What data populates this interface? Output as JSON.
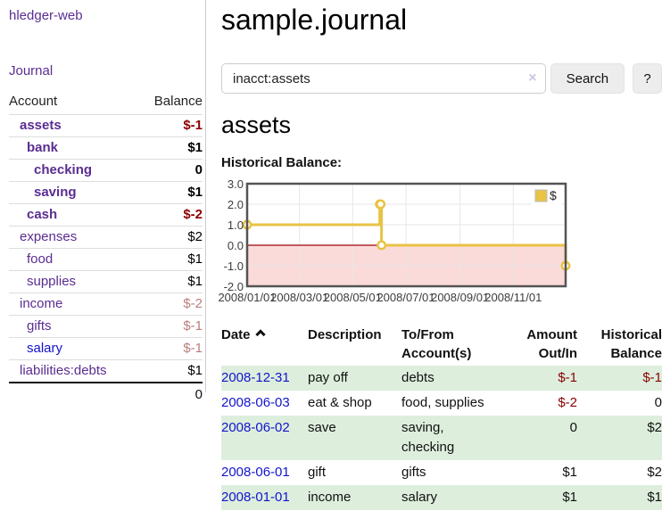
{
  "app": {
    "title": "hledger-web",
    "nav": {
      "journal": "Journal"
    }
  },
  "sidebar": {
    "accounts": {
      "headers": {
        "account": "Account",
        "balance": "Balance"
      },
      "rows": [
        {
          "label": "assets",
          "depth": 1,
          "bold": true,
          "link": "purple",
          "amount": "$-1",
          "amount_style": "neg"
        },
        {
          "label": "bank",
          "depth": 2,
          "bold": true,
          "link": "purple",
          "amount": "$1",
          "amount_style": "pos"
        },
        {
          "label": "checking",
          "depth": 3,
          "bold": true,
          "link": "purple",
          "amount": "0",
          "amount_style": "pos"
        },
        {
          "label": "saving",
          "depth": 3,
          "bold": true,
          "link": "purple",
          "amount": "$1",
          "amount_style": "pos"
        },
        {
          "label": "cash",
          "depth": 2,
          "bold": true,
          "link": "purple",
          "amount": "$-2",
          "amount_style": "neg"
        },
        {
          "label": "expenses",
          "depth": 1,
          "bold": false,
          "link": "purple",
          "amount": "$2",
          "amount_style": "pos"
        },
        {
          "label": "food",
          "depth": 2,
          "bold": false,
          "link": "purple",
          "amount": "$1",
          "amount_style": "pos"
        },
        {
          "label": "supplies",
          "depth": 2,
          "bold": false,
          "link": "purple",
          "amount": "$1",
          "amount_style": "pos"
        },
        {
          "label": "income",
          "depth": 1,
          "bold": false,
          "link": "purple",
          "amount": "$-2",
          "amount_style": "negmuted"
        },
        {
          "label": "gifts",
          "depth": 2,
          "bold": false,
          "link": "purple",
          "amount": "$-1",
          "amount_style": "negmuted"
        },
        {
          "label": "salary",
          "depth": 2,
          "bold": false,
          "link": "blue",
          "amount": "$-1",
          "amount_style": "negmuted"
        },
        {
          "label": "liabilities:debts",
          "depth": 1,
          "bold": false,
          "link": "purple",
          "amount": "$1",
          "amount_style": "pos"
        }
      ],
      "total": "0"
    }
  },
  "main": {
    "title": "sample.journal",
    "search": {
      "value": "inacct:assets",
      "clear_icon": "×",
      "search_button": "Search",
      "help_button": "?"
    },
    "account_heading": "assets",
    "chart_title": "Historical Balance:"
  },
  "chart_data": {
    "type": "line",
    "step": true,
    "title": "Historical Balance:",
    "xrange": [
      "2008-01-01",
      "2008-12-31"
    ],
    "ylim": [
      -2.0,
      3.0
    ],
    "yticks": [
      "3.0",
      "2.0",
      "1.0",
      "0.0",
      "-1.0",
      "-2.0"
    ],
    "xticks": [
      "2008/01/01",
      "2008/03/01",
      "2008/05/01",
      "2008/07/01",
      "2008/09/01",
      "2008/11/01"
    ],
    "series": [
      {
        "name": "$",
        "color": "#e8c345",
        "points": [
          [
            "2008-01-01",
            1
          ],
          [
            "2008-06-01",
            2
          ],
          [
            "2008-06-02",
            2
          ],
          [
            "2008-06-03",
            0
          ],
          [
            "2008-12-31",
            -1
          ]
        ]
      }
    ],
    "grid": true,
    "legend_position": "top-right",
    "negative_region_color": "#fbdada",
    "zero_line_color": "#9e0508",
    "border_color": "#545454",
    "gridline_color": "#e7e7e7"
  },
  "register": {
    "headers": {
      "date": "Date",
      "description": "Description",
      "accounts": "To/From Account(s)",
      "amount": "Amount Out/In",
      "balance": "Historical Balance"
    },
    "rows": [
      {
        "date": "2008-12-31",
        "description": "pay off",
        "accounts": "debts",
        "amount": "$-1",
        "amount_neg": true,
        "balance": "$-1",
        "balance_neg": true,
        "shaded": true
      },
      {
        "date": "2008-06-03",
        "description": "eat & shop",
        "accounts": "food, supplies",
        "amount": "$-2",
        "amount_neg": true,
        "balance": "0",
        "balance_neg": false,
        "shaded": false
      },
      {
        "date": "2008-06-02",
        "description": "save",
        "accounts": "saving, checking",
        "amount": "0",
        "amount_neg": false,
        "balance": "$2",
        "balance_neg": false,
        "shaded": true
      },
      {
        "date": "2008-06-01",
        "description": "gift",
        "accounts": "gifts",
        "amount": "$1",
        "amount_neg": false,
        "balance": "$2",
        "balance_neg": false,
        "shaded": false
      },
      {
        "date": "2008-01-01",
        "description": "income",
        "accounts": "salary",
        "amount": "$1",
        "amount_neg": false,
        "balance": "$1",
        "balance_neg": false,
        "shaded": true
      }
    ]
  },
  "colors": {
    "link_purple": "#5a2d91",
    "link_blue": "#1414cc",
    "negative": "#8b0000",
    "negative_muted": "#bd7d7d",
    "row_green": "#ddeedd",
    "chart_line": "#e8c345"
  }
}
